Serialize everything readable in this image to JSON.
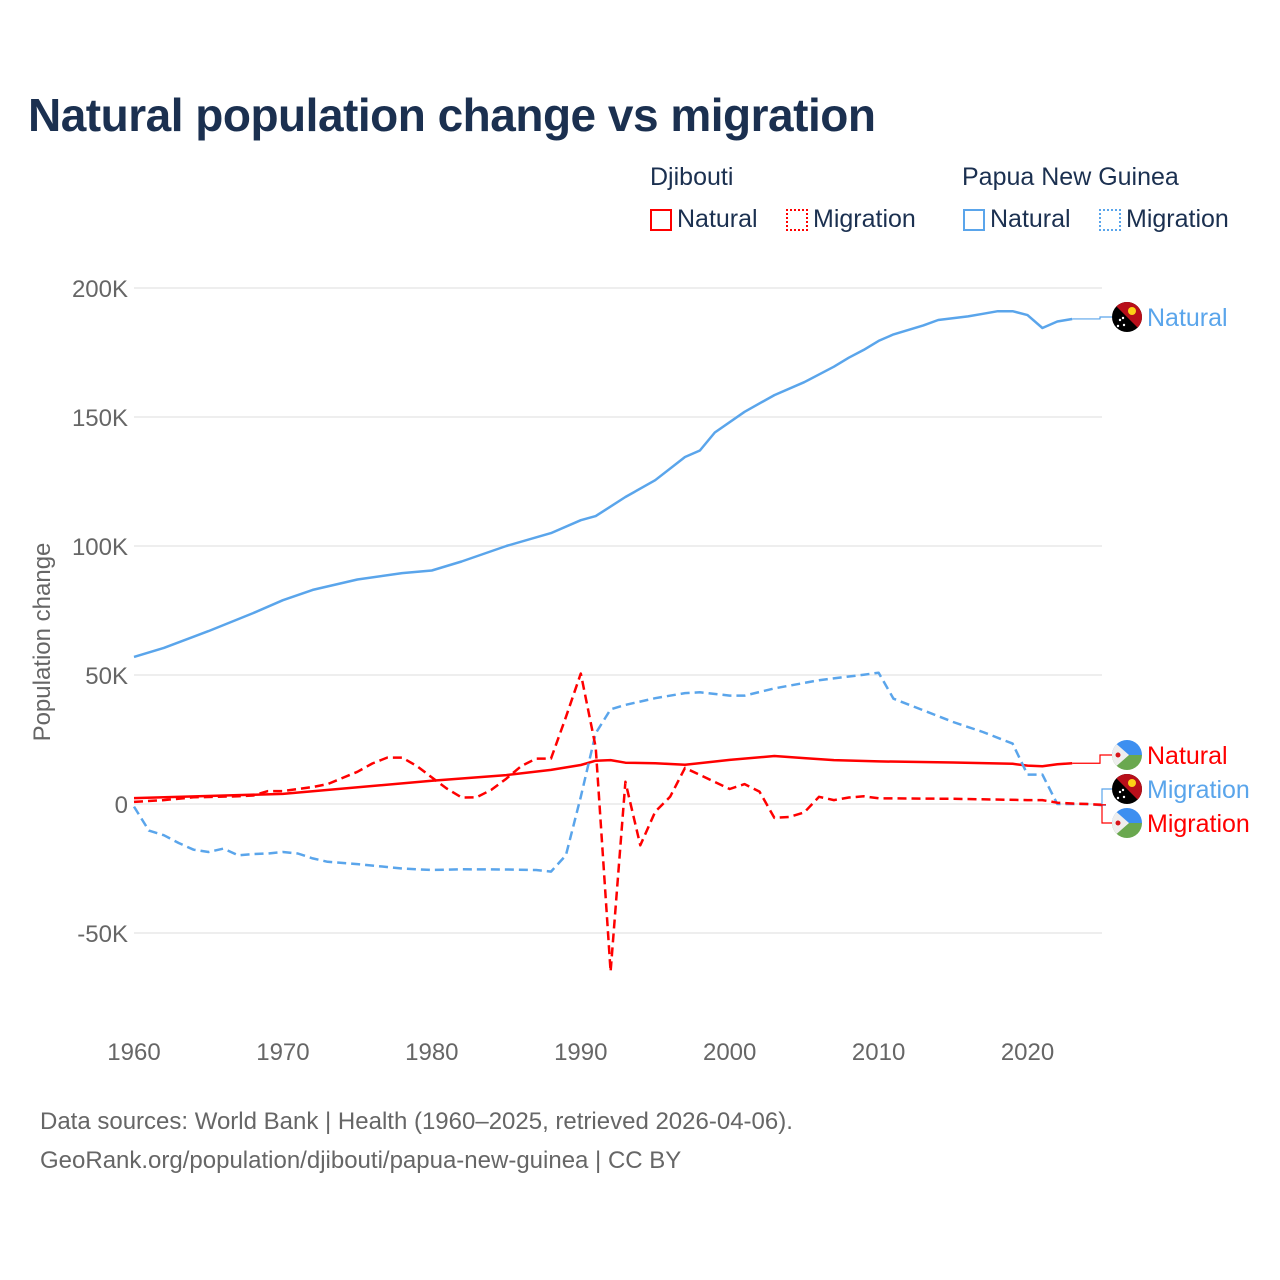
{
  "title": "Natural population change vs migration",
  "legend": {
    "groups": [
      {
        "name": "Djibouti",
        "color": "#ff0000",
        "items": [
          "Natural",
          "Migration"
        ]
      },
      {
        "name": "Papua New Guinea",
        "color": "#5aa5eb",
        "items": [
          "Natural",
          "Migration"
        ]
      }
    ]
  },
  "footer": {
    "line1": "Data sources: World Bank | Health (1960–2025, retrieved 2026-04-06).",
    "line2": "GeoRank.org/population/djibouti/papua-new-guinea | CC BY"
  },
  "chart_data": {
    "type": "line",
    "title": "Natural population change vs migration",
    "xlabel": "",
    "ylabel": "Population change",
    "xlim": [
      1960,
      2025
    ],
    "ylim": [
      -50000,
      200000
    ],
    "x_ticks": [
      "1960",
      "1970",
      "1980",
      "1990",
      "2000",
      "2010",
      "2020"
    ],
    "y_ticks": [
      "200K",
      "150K",
      "100K",
      "50K",
      "0",
      "-50K"
    ],
    "y_tick_values": [
      200000,
      150000,
      100000,
      50000,
      0,
      -50000
    ],
    "grid": true,
    "series": [
      {
        "name": "Papua New Guinea Natural",
        "label": "Natural",
        "country": "Papua New Guinea",
        "color": "#5aa5eb",
        "dash": false,
        "points": [
          [
            1960,
            57000
          ],
          [
            1962,
            60500
          ],
          [
            1965,
            67000
          ],
          [
            1968,
            74000
          ],
          [
            1970,
            79000
          ],
          [
            1972,
            83000
          ],
          [
            1975,
            87000
          ],
          [
            1978,
            89500
          ],
          [
            1980,
            90500
          ],
          [
            1982,
            94000
          ],
          [
            1985,
            100000
          ],
          [
            1988,
            105000
          ],
          [
            1990,
            110000
          ],
          [
            1991,
            111600
          ],
          [
            1993,
            119000
          ],
          [
            1995,
            125500
          ],
          [
            1997,
            134500
          ],
          [
            1998,
            137000
          ],
          [
            1999,
            144000
          ],
          [
            2001,
            152000
          ],
          [
            2003,
            158500
          ],
          [
            2005,
            163500
          ],
          [
            2007,
            169500
          ],
          [
            2008,
            173000
          ],
          [
            2009,
            176000
          ],
          [
            2010,
            179500
          ],
          [
            2011,
            182000
          ],
          [
            2013,
            185500
          ],
          [
            2014,
            187600
          ],
          [
            2016,
            189000
          ],
          [
            2017,
            190000
          ],
          [
            2018,
            191000
          ],
          [
            2019,
            191000
          ],
          [
            2020,
            189500
          ],
          [
            2021,
            184500
          ],
          [
            2022,
            187000
          ],
          [
            2023,
            188000
          ]
        ]
      },
      {
        "name": "Djibouti Natural",
        "label": "Natural",
        "country": "Djibouti",
        "color": "#ff0000",
        "dash": false,
        "points": [
          [
            1960,
            2300
          ],
          [
            1970,
            3900
          ],
          [
            1980,
            9000
          ],
          [
            1985,
            11200
          ],
          [
            1988,
            13200
          ],
          [
            1990,
            15100
          ],
          [
            1991,
            16800
          ],
          [
            1992,
            17000
          ],
          [
            1993,
            16000
          ],
          [
            1995,
            15800
          ],
          [
            1997,
            15200
          ],
          [
            2000,
            17100
          ],
          [
            2003,
            18600
          ],
          [
            2005,
            17800
          ],
          [
            2007,
            17000
          ],
          [
            2010,
            16500
          ],
          [
            2015,
            16100
          ],
          [
            2019,
            15600
          ],
          [
            2020,
            14900
          ],
          [
            2021,
            14600
          ],
          [
            2022,
            15400
          ],
          [
            2023,
            15800
          ]
        ]
      },
      {
        "name": "Papua New Guinea Migration",
        "label": "Migration",
        "country": "Papua New Guinea",
        "color": "#5aa5eb",
        "dash": true,
        "points": [
          [
            1960,
            -1000
          ],
          [
            1961,
            -10300
          ],
          [
            1962,
            -12100
          ],
          [
            1963,
            -15100
          ],
          [
            1964,
            -17700
          ],
          [
            1965,
            -18600
          ],
          [
            1966,
            -17300
          ],
          [
            1967,
            -19900
          ],
          [
            1968,
            -19400
          ],
          [
            1969,
            -19200
          ],
          [
            1970,
            -18600
          ],
          [
            1971,
            -19200
          ],
          [
            1972,
            -21100
          ],
          [
            1973,
            -22400
          ],
          [
            1975,
            -23300
          ],
          [
            1978,
            -25000
          ],
          [
            1980,
            -25600
          ],
          [
            1982,
            -25300
          ],
          [
            1985,
            -25400
          ],
          [
            1987,
            -25600
          ],
          [
            1988,
            -26200
          ],
          [
            1989,
            -19900
          ],
          [
            1990,
            2800
          ],
          [
            1991,
            27400
          ],
          [
            1992,
            36700
          ],
          [
            1993,
            38400
          ],
          [
            1995,
            41000
          ],
          [
            1997,
            43000
          ],
          [
            1998,
            43300
          ],
          [
            2000,
            42000
          ],
          [
            2001,
            42000
          ],
          [
            2003,
            44800
          ],
          [
            2006,
            48000
          ],
          [
            2009,
            50100
          ],
          [
            2010,
            50900
          ],
          [
            2011,
            40800
          ],
          [
            2013,
            36300
          ],
          [
            2015,
            31800
          ],
          [
            2017,
            27900
          ],
          [
            2019,
            23400
          ],
          [
            2020,
            11400
          ],
          [
            2021,
            11400
          ],
          [
            2022,
            0
          ],
          [
            2023,
            0
          ],
          [
            2024,
            0
          ],
          [
            2025,
            -500
          ]
        ]
      },
      {
        "name": "Djibouti Migration",
        "label": "Migration",
        "country": "Djibouti",
        "color": "#ff0000",
        "dash": true,
        "points": [
          [
            1960,
            800
          ],
          [
            1962,
            1500
          ],
          [
            1964,
            2600
          ],
          [
            1967,
            3000
          ],
          [
            1968,
            3300
          ],
          [
            1969,
            5000
          ],
          [
            1970,
            5000
          ],
          [
            1972,
            6600
          ],
          [
            1973,
            7700
          ],
          [
            1975,
            12500
          ],
          [
            1976,
            15700
          ],
          [
            1977,
            18000
          ],
          [
            1978,
            18000
          ],
          [
            1979,
            14700
          ],
          [
            1980,
            10300
          ],
          [
            1981,
            6000
          ],
          [
            1982,
            2500
          ],
          [
            1983,
            2600
          ],
          [
            1984,
            5500
          ],
          [
            1985,
            9800
          ],
          [
            1986,
            14700
          ],
          [
            1987,
            17600
          ],
          [
            1988,
            17600
          ],
          [
            1989,
            33700
          ],
          [
            1990,
            50600
          ],
          [
            1991,
            22000
          ],
          [
            1992,
            -65000
          ],
          [
            1993,
            8600
          ],
          [
            1994,
            -16000
          ],
          [
            1995,
            -3000
          ],
          [
            1996,
            2800
          ],
          [
            1997,
            14000
          ],
          [
            2000,
            5800
          ],
          [
            2001,
            7700
          ],
          [
            2002,
            4800
          ],
          [
            2003,
            -5400
          ],
          [
            2004,
            -5000
          ],
          [
            2005,
            -3300
          ],
          [
            2006,
            2800
          ],
          [
            2007,
            1500
          ],
          [
            2008,
            2500
          ],
          [
            2009,
            3000
          ],
          [
            2010,
            2200
          ],
          [
            2015,
            2000
          ],
          [
            2020,
            1500
          ],
          [
            2021,
            1500
          ],
          [
            2022,
            500
          ],
          [
            2023,
            200
          ],
          [
            2024,
            0
          ],
          [
            2025,
            -300
          ]
        ]
      }
    ]
  }
}
